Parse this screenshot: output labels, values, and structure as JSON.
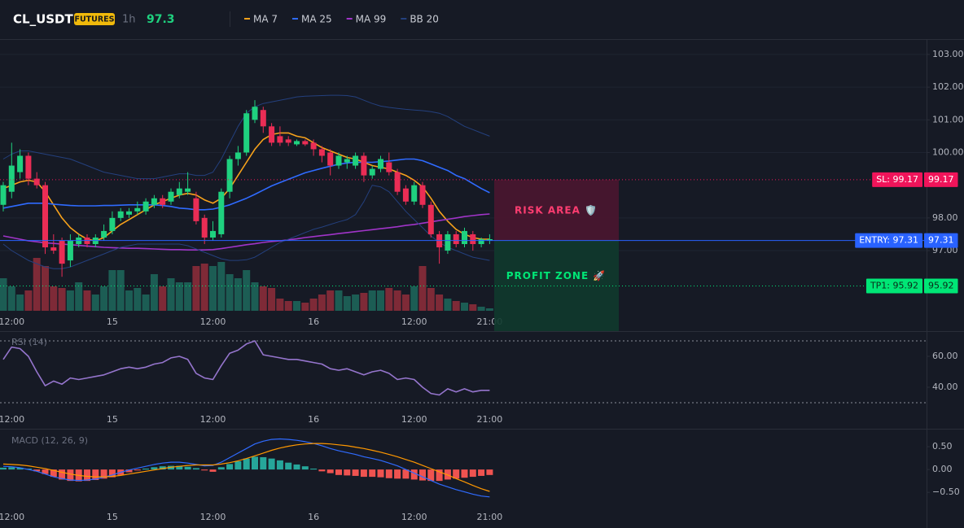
{
  "chart_data": [
    {
      "type": "candlestick",
      "title": "CL_USDT",
      "badge": "FUTURES",
      "interval": "1h",
      "last_price": 97.3,
      "categories": [
        null,
        "12:00",
        null,
        null,
        null,
        null,
        null,
        null,
        null,
        null,
        null,
        null,
        null,
        "15",
        null,
        null,
        null,
        null,
        null,
        null,
        null,
        null,
        null,
        null,
        null,
        "12:00",
        null,
        null,
        null,
        null,
        null,
        null,
        null,
        null,
        null,
        null,
        null,
        "16",
        null,
        null,
        null,
        null,
        null,
        null,
        null,
        null,
        null,
        null,
        null,
        "12:00",
        null,
        null,
        null,
        null,
        null,
        null,
        null,
        null,
        "21:00"
      ],
      "open": [
        98.4,
        98.8,
        99.4,
        99.9,
        99.2,
        99.0,
        97.1,
        97.3,
        96.7,
        97.2,
        97.4,
        97.2,
        97.4,
        97.6,
        98.0,
        98.1,
        98.2,
        98.2,
        98.4,
        98.6,
        98.5,
        98.7,
        98.8,
        98.6,
        98.0,
        97.4,
        97.5,
        98.8,
        99.8,
        100.0,
        101.0,
        101.3,
        100.8,
        100.5,
        100.4,
        100.25,
        100.35,
        100.3,
        100.1,
        100.0,
        99.6,
        99.7,
        99.6,
        99.9,
        99.3,
        99.5,
        99.7,
        99.4,
        98.9,
        98.5,
        99.0,
        98.4,
        97.5,
        97.0,
        97.5,
        97.2,
        97.5,
        97.2,
        97.3
      ],
      "high": [
        99.1,
        100.3,
        100.1,
        100.0,
        99.4,
        99.1,
        97.5,
        97.4,
        97.5,
        97.5,
        97.5,
        97.5,
        97.8,
        98.2,
        98.3,
        98.3,
        98.5,
        98.6,
        98.7,
        98.7,
        98.9,
        99.1,
        99.4,
        98.8,
        98.1,
        97.9,
        98.9,
        99.9,
        100.2,
        101.3,
        101.6,
        101.4,
        100.9,
        100.8,
        100.5,
        100.4,
        100.4,
        100.4,
        100.2,
        100.1,
        100.0,
        99.9,
        100.0,
        100.0,
        99.6,
        99.9,
        100.0,
        99.5,
        99.0,
        99.1,
        99.1,
        98.5,
        97.6,
        97.6,
        97.6,
        97.7,
        97.6,
        97.4,
        97.5
      ],
      "low": [
        98.2,
        98.6,
        99.2,
        99.0,
        98.9,
        96.9,
        96.9,
        96.2,
        96.5,
        97.1,
        97.1,
        97.1,
        97.3,
        97.5,
        97.9,
        98.0,
        98.1,
        98.1,
        98.3,
        98.3,
        98.4,
        98.6,
        98.7,
        97.8,
        97.2,
        97.3,
        97.4,
        98.6,
        99.6,
        99.9,
        100.9,
        100.6,
        100.2,
        100.2,
        100.2,
        100.2,
        100.2,
        99.9,
        99.7,
        99.3,
        99.5,
        99.5,
        99.5,
        99.1,
        99.2,
        99.4,
        99.3,
        98.7,
        98.4,
        98.4,
        98.3,
        97.4,
        96.6,
        96.9,
        97.1,
        97.1,
        97.0,
        97.1,
        97.2
      ],
      "close": [
        99.0,
        99.6,
        99.9,
        99.2,
        99.0,
        97.1,
        97.0,
        96.6,
        97.3,
        97.4,
        97.2,
        97.4,
        97.6,
        98.0,
        98.2,
        98.2,
        98.3,
        98.5,
        98.6,
        98.4,
        98.8,
        98.9,
        98.9,
        97.9,
        97.4,
        97.6,
        98.8,
        99.8,
        100.0,
        101.2,
        101.4,
        100.8,
        100.3,
        100.3,
        100.3,
        100.35,
        100.25,
        100.1,
        99.9,
        99.6,
        99.9,
        99.8,
        99.9,
        99.3,
        99.5,
        99.8,
        99.4,
        98.8,
        98.5,
        99.0,
        98.4,
        97.5,
        97.1,
        97.5,
        97.2,
        97.6,
        97.2,
        97.35,
        97.35
      ],
      "volume": [
        40,
        30,
        20,
        25,
        65,
        55,
        30,
        28,
        25,
        35,
        25,
        20,
        30,
        50,
        50,
        25,
        28,
        20,
        45,
        30,
        40,
        35,
        35,
        55,
        58,
        55,
        60,
        45,
        40,
        50,
        35,
        30,
        28,
        15,
        12,
        12,
        10,
        15,
        20,
        25,
        25,
        18,
        20,
        22,
        25,
        25,
        28,
        25,
        20,
        30,
        55,
        28,
        20,
        15,
        12,
        10,
        8,
        5,
        3
      ],
      "up_color": "#1fd17f",
      "down_color": "#ea2d55",
      "volume_up_color": "#1c5d54",
      "volume_down_color": "#7e2a37",
      "series": [
        {
          "name": "MA 7",
          "color": "#f7a21b",
          "values": [
            98.9,
            99.0,
            99.1,
            99.15,
            99.1,
            98.8,
            98.4,
            98.0,
            97.7,
            97.5,
            97.35,
            97.3,
            97.4,
            97.6,
            97.8,
            97.95,
            98.1,
            98.25,
            98.4,
            98.5,
            98.6,
            98.7,
            98.75,
            98.7,
            98.55,
            98.45,
            98.6,
            98.9,
            99.3,
            99.7,
            100.1,
            100.4,
            100.55,
            100.6,
            100.6,
            100.5,
            100.45,
            100.3,
            100.15,
            100.05,
            99.95,
            99.85,
            99.8,
            99.7,
            99.6,
            99.55,
            99.5,
            99.4,
            99.3,
            99.15,
            98.95,
            98.6,
            98.2,
            97.9,
            97.65,
            97.5,
            97.4,
            97.35,
            97.35
          ]
        },
        {
          "name": "MA 25",
          "color": "#2f6bff",
          "values": [
            98.3,
            98.35,
            98.4,
            98.45,
            98.45,
            98.45,
            98.42,
            98.4,
            98.38,
            98.37,
            98.37,
            98.37,
            98.38,
            98.38,
            98.39,
            98.4,
            98.4,
            98.4,
            98.4,
            98.38,
            98.35,
            98.3,
            98.28,
            98.25,
            98.25,
            98.27,
            98.33,
            98.4,
            98.5,
            98.6,
            98.72,
            98.85,
            98.98,
            99.08,
            99.18,
            99.28,
            99.38,
            99.45,
            99.52,
            99.58,
            99.64,
            99.68,
            99.7,
            99.7,
            99.7,
            99.72,
            99.74,
            99.77,
            99.8,
            99.8,
            99.75,
            99.65,
            99.55,
            99.45,
            99.3,
            99.2,
            99.05,
            98.9,
            98.77
          ]
        },
        {
          "name": "MA 99",
          "color": "#a034c8",
          "values": [
            97.45,
            97.4,
            97.35,
            97.3,
            97.27,
            97.24,
            97.22,
            97.2,
            97.18,
            97.16,
            97.14,
            97.12,
            97.1,
            97.09,
            97.08,
            97.07,
            97.07,
            97.06,
            97.05,
            97.04,
            97.03,
            97.03,
            97.02,
            97.02,
            97.02,
            97.03,
            97.06,
            97.1,
            97.14,
            97.18,
            97.21,
            97.25,
            97.28,
            97.3,
            97.33,
            97.36,
            97.4,
            97.43,
            97.46,
            97.49,
            97.52,
            97.55,
            97.58,
            97.61,
            97.64,
            97.67,
            97.7,
            97.73,
            97.77,
            97.8,
            97.84,
            97.88,
            97.92,
            97.96,
            98.0,
            98.04,
            98.07,
            98.1,
            98.12
          ]
        },
        {
          "name": "BB 20",
          "color": "#24407e",
          "upper": [
            99.8,
            99.95,
            100.05,
            100.05,
            100.0,
            99.95,
            99.9,
            99.85,
            99.8,
            99.7,
            99.6,
            99.5,
            99.4,
            99.35,
            99.3,
            99.25,
            99.2,
            99.2,
            99.2,
            99.25,
            99.3,
            99.35,
            99.35,
            99.3,
            99.3,
            99.4,
            99.8,
            100.3,
            100.8,
            101.2,
            101.4,
            101.5,
            101.55,
            101.6,
            101.65,
            101.7,
            101.72,
            101.73,
            101.74,
            101.75,
            101.75,
            101.74,
            101.7,
            101.6,
            101.5,
            101.42,
            101.38,
            101.35,
            101.32,
            101.3,
            101.28,
            101.25,
            101.2,
            101.1,
            100.95,
            100.8,
            100.7,
            100.6,
            100.5
          ],
          "lower": [
            97.2,
            97.0,
            96.85,
            96.7,
            96.6,
            96.5,
            96.45,
            96.45,
            96.5,
            96.6,
            96.7,
            96.8,
            96.9,
            97.0,
            97.1,
            97.15,
            97.2,
            97.2,
            97.2,
            97.2,
            97.2,
            97.2,
            97.15,
            97.05,
            96.95,
            96.85,
            96.75,
            96.7,
            96.7,
            96.72,
            96.8,
            96.95,
            97.1,
            97.25,
            97.35,
            97.45,
            97.55,
            97.65,
            97.72,
            97.8,
            97.88,
            97.95,
            98.1,
            98.5,
            99.0,
            98.95,
            98.8,
            98.5,
            98.2,
            97.95,
            97.7,
            97.45,
            97.25,
            97.1,
            97.0,
            96.9,
            96.8,
            96.75,
            96.7
          ]
        }
      ],
      "levels": [
        {
          "name": "SL: 99.17",
          "value": 99.17,
          "color": "#f0145a",
          "text_color": "#ffffff",
          "style": "dotted"
        },
        {
          "name": "ENTRY: 97.31",
          "value": 97.31,
          "color": "#2962ff",
          "text_color": "#ffffff",
          "style": "solid"
        },
        {
          "name": "TP1: 95.92",
          "value": 95.92,
          "color": "#00e676",
          "text_color": "#0a2a18",
          "style": "dotted"
        }
      ],
      "zones": [
        {
          "label": "RISK AREA 🛡️",
          "from": 99.17,
          "to": 97.31,
          "color": "#4a1630",
          "text_color": "#ff3d71"
        },
        {
          "label": "PROFIT ZONE 🚀",
          "from": 97.31,
          "to": 94.54,
          "color": "#0f3a2e",
          "text_color": "#00e676"
        }
      ],
      "ylim": [
        95.16,
        103.47
      ],
      "yticks": [
        {
          "value": 97,
          "label": "97.00"
        },
        {
          "value": 98,
          "label": "98.00"
        },
        {
          "value": 100,
          "label": "100.00"
        },
        {
          "value": 101,
          "label": "101.00"
        },
        {
          "value": 102,
          "label": "102.00"
        },
        {
          "value": 103,
          "label": "103.00"
        }
      ],
      "grid": true
    },
    {
      "type": "line",
      "label": "RSI (14)",
      "categories": [
        null,
        "12:00",
        null,
        null,
        null,
        null,
        null,
        null,
        null,
        null,
        null,
        null,
        null,
        "15",
        null,
        null,
        null,
        null,
        null,
        null,
        null,
        null,
        null,
        null,
        null,
        "12:00",
        null,
        null,
        null,
        null,
        null,
        null,
        null,
        null,
        null,
        null,
        null,
        "16",
        null,
        null,
        null,
        null,
        null,
        null,
        null,
        null,
        null,
        null,
        null,
        "12:00",
        null,
        null,
        null,
        null,
        null,
        null,
        null,
        null,
        "21:00"
      ],
      "series": [
        {
          "color": "#9575cd",
          "values": [
            58,
            66,
            65,
            60,
            50,
            41,
            44,
            42,
            46,
            45,
            46,
            47,
            48,
            50,
            52,
            53,
            52,
            53,
            55,
            56,
            59,
            60,
            58,
            49,
            46,
            45,
            54,
            62,
            64,
            68,
            70,
            61,
            60,
            59,
            58,
            58,
            57,
            56,
            55,
            52,
            51,
            52,
            50,
            48,
            50,
            51,
            49,
            45,
            46,
            45,
            40,
            36,
            35,
            39,
            37,
            39,
            37,
            38,
            38
          ]
        }
      ],
      "levels": [
        70,
        30
      ],
      "ylim": [
        26.3,
        75.8
      ],
      "yticks": [
        {
          "value": 60,
          "label": "60.00"
        },
        {
          "value": 40,
          "label": "40.00"
        }
      ],
      "grid": false
    },
    {
      "type": "macd",
      "label": "MACD (12, 26, 9)",
      "categories": [
        null,
        "12:00",
        null,
        null,
        null,
        null,
        null,
        null,
        null,
        null,
        null,
        null,
        null,
        "15",
        null,
        null,
        null,
        null,
        null,
        null,
        null,
        null,
        null,
        null,
        null,
        "12:00",
        null,
        null,
        null,
        null,
        null,
        null,
        null,
        null,
        null,
        null,
        null,
        "16",
        null,
        null,
        null,
        null,
        null,
        null,
        null,
        null,
        null,
        null,
        null,
        "12:00",
        null,
        null,
        null,
        null,
        null,
        null,
        null,
        null,
        "21:00"
      ],
      "series": [
        {
          "color": "#2f6bff",
          "values": [
            0.07,
            0.06,
            0.04,
            0.0,
            -0.04,
            -0.1,
            -0.16,
            -0.2,
            -0.23,
            -0.24,
            -0.23,
            -0.21,
            -0.17,
            -0.12,
            -0.06,
            -0.01,
            0.03,
            0.07,
            0.11,
            0.14,
            0.16,
            0.16,
            0.14,
            0.11,
            0.08,
            0.09,
            0.16,
            0.26,
            0.36,
            0.46,
            0.56,
            0.62,
            0.66,
            0.67,
            0.66,
            0.64,
            0.61,
            0.57,
            0.52,
            0.46,
            0.41,
            0.37,
            0.33,
            0.28,
            0.24,
            0.2,
            0.14,
            0.08,
            0.0,
            -0.08,
            -0.16,
            -0.24,
            -0.32,
            -0.38,
            -0.44,
            -0.49,
            -0.54,
            -0.58,
            -0.6
          ]
        },
        {
          "color": "#ff9800",
          "values": [
            0.12,
            0.11,
            0.1,
            0.08,
            0.05,
            0.02,
            -0.02,
            -0.06,
            -0.1,
            -0.13,
            -0.15,
            -0.16,
            -0.16,
            -0.15,
            -0.13,
            -0.1,
            -0.07,
            -0.04,
            -0.01,
            0.02,
            0.05,
            0.07,
            0.09,
            0.1,
            0.1,
            0.1,
            0.12,
            0.15,
            0.19,
            0.24,
            0.3,
            0.36,
            0.42,
            0.47,
            0.51,
            0.54,
            0.56,
            0.57,
            0.57,
            0.56,
            0.54,
            0.52,
            0.49,
            0.46,
            0.42,
            0.38,
            0.33,
            0.28,
            0.22,
            0.16,
            0.09,
            0.02,
            -0.05,
            -0.12,
            -0.2,
            -0.27,
            -0.35,
            -0.42,
            -0.48
          ]
        }
      ],
      "histogram": {
        "up_color": "#26a69a",
        "down_color": "#ef5350",
        "values": [
          0.04,
          0.05,
          0.04,
          0.02,
          -0.04,
          -0.1,
          -0.16,
          -0.22,
          -0.25,
          -0.26,
          -0.25,
          -0.23,
          -0.2,
          -0.17,
          -0.12,
          -0.06,
          -0.02,
          0.02,
          0.05,
          0.07,
          0.08,
          0.08,
          0.06,
          0.03,
          -0.02,
          -0.05,
          0.05,
          0.12,
          0.18,
          0.24,
          0.28,
          0.27,
          0.24,
          0.2,
          0.15,
          0.11,
          0.07,
          0.02,
          -0.04,
          -0.08,
          -0.12,
          -0.13,
          -0.14,
          -0.16,
          -0.16,
          -0.17,
          -0.19,
          -0.2,
          -0.2,
          -0.22,
          -0.24,
          -0.25,
          -0.25,
          -0.22,
          -0.2,
          -0.18,
          -0.16,
          -0.14,
          -0.12
        ]
      },
      "ylim": [
        -0.8,
        0.875
      ],
      "yticks": [
        {
          "value": 0.5,
          "label": "0.50"
        },
        {
          "value": 0,
          "label": "0.00"
        },
        {
          "value": -0.5,
          "label": "−0.50"
        }
      ],
      "grid": false
    }
  ]
}
